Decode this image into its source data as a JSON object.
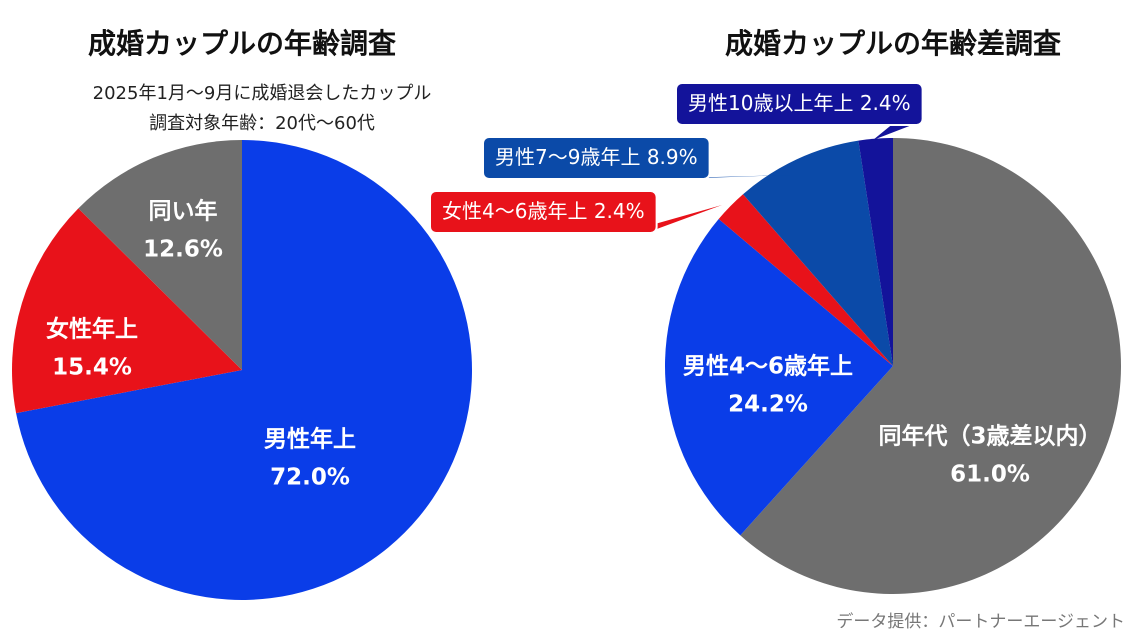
{
  "chart_data": [
    {
      "type": "pie",
      "title": "成婚カップルの年齢調査",
      "subtitle": [
        "2025年1月〜9月に成婚退会したカップル",
        "調査対象年齢：20代〜60代"
      ],
      "categories": [
        "男性年上",
        "女性年上",
        "同い年"
      ],
      "values": [
        72.0,
        15.4,
        12.6
      ],
      "value_labels": [
        "72.0%",
        "15.4%",
        "12.6%"
      ],
      "colors": [
        "#0a3de8",
        "#e8121a",
        "#6e6e6e"
      ]
    },
    {
      "type": "pie",
      "title": "成婚カップルの年齢差調査",
      "categories": [
        "同年代（3歳差以内）",
        "男性4〜6歳年上",
        "女性4〜6歳年上",
        "男性7〜9歳年上",
        "男性10歳以上年上"
      ],
      "values": [
        61.0,
        24.2,
        2.4,
        8.9,
        2.4
      ],
      "value_labels": [
        "61.0%",
        "24.2%",
        "2.4%",
        "8.9%",
        "2.4%"
      ],
      "colors": [
        "#6e6e6e",
        "#0a3de8",
        "#e8121a",
        "#0b4aa8",
        "#13139a"
      ]
    }
  ],
  "source": "データ提供：パートナーエージェント"
}
